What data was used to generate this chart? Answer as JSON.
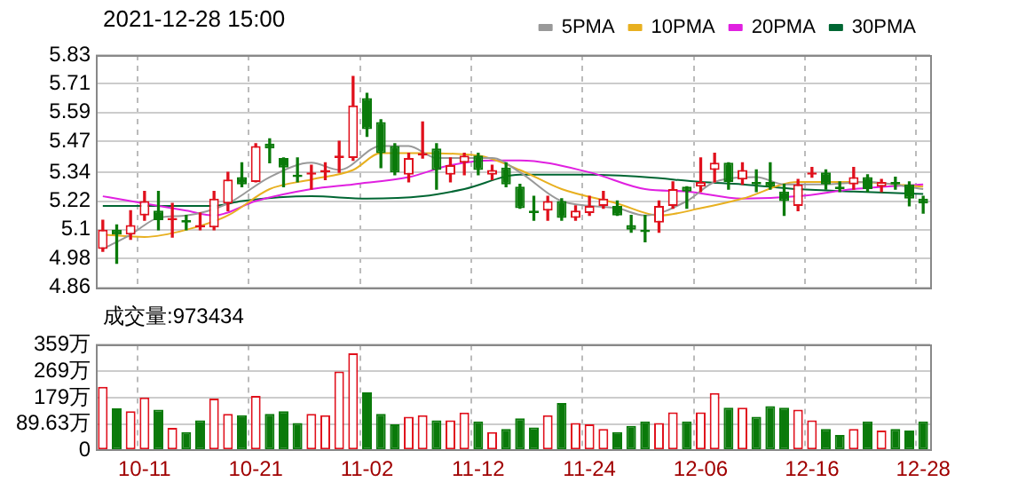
{
  "chart_data": [
    {
      "type": "candlestick",
      "title": "2021-12-28 15:00",
      "categories": [
        null,
        null,
        null,
        null,
        null,
        null,
        null,
        null,
        null,
        null,
        null,
        null,
        null,
        null,
        null,
        null,
        null,
        null,
        null,
        null,
        null,
        null,
        null,
        null,
        null,
        null,
        null,
        null,
        null,
        null,
        null,
        null,
        null,
        null,
        null,
        null,
        null,
        null,
        null,
        null,
        null,
        null,
        null,
        null,
        null,
        null,
        null,
        null,
        null,
        null,
        null,
        null,
        null,
        null,
        null,
        null,
        null,
        null,
        null,
        null
      ],
      "ohlc": [
        [
          5.02,
          5.14,
          5.01,
          5.1
        ],
        [
          5.1,
          5.12,
          4.96,
          5.08
        ],
        [
          5.08,
          5.18,
          5.06,
          5.12
        ],
        [
          5.16,
          5.26,
          5.14,
          5.22
        ],
        [
          5.18,
          5.26,
          5.1,
          5.14
        ],
        [
          5.14,
          5.21,
          5.07,
          5.15
        ],
        [
          5.14,
          5.16,
          5.1,
          5.13
        ],
        [
          5.11,
          5.17,
          5.1,
          5.12
        ],
        [
          5.11,
          5.26,
          5.1,
          5.23
        ],
        [
          5.21,
          5.34,
          5.18,
          5.31
        ],
        [
          5.32,
          5.38,
          5.28,
          5.29
        ],
        [
          5.3,
          5.46,
          5.3,
          5.45
        ],
        [
          5.46,
          5.48,
          5.38,
          5.44
        ],
        [
          5.4,
          5.4,
          5.28,
          5.36
        ],
        [
          5.33,
          5.4,
          5.3,
          5.32
        ],
        [
          5.33,
          5.37,
          5.27,
          5.34
        ],
        [
          5.34,
          5.38,
          5.31,
          5.35
        ],
        [
          5.4,
          5.47,
          5.34,
          5.41
        ],
        [
          5.4,
          5.74,
          5.39,
          5.62
        ],
        [
          5.65,
          5.67,
          5.49,
          5.52
        ],
        [
          5.55,
          5.56,
          5.36,
          5.42
        ],
        [
          5.45,
          5.46,
          5.33,
          5.34
        ],
        [
          5.33,
          5.42,
          5.3,
          5.4
        ],
        [
          5.41,
          5.55,
          5.4,
          5.42
        ],
        [
          5.44,
          5.46,
          5.27,
          5.35
        ],
        [
          5.33,
          5.4,
          5.3,
          5.37
        ],
        [
          5.38,
          5.42,
          5.33,
          5.41
        ],
        [
          5.41,
          5.42,
          5.33,
          5.35
        ],
        [
          5.33,
          5.37,
          5.31,
          5.35
        ],
        [
          5.36,
          5.38,
          5.28,
          5.29
        ],
        [
          5.28,
          5.29,
          5.19,
          5.19
        ],
        [
          5.18,
          5.24,
          5.14,
          5.17
        ],
        [
          5.18,
          5.24,
          5.14,
          5.22
        ],
        [
          5.22,
          5.23,
          5.14,
          5.15
        ],
        [
          5.15,
          5.2,
          5.14,
          5.18
        ],
        [
          5.17,
          5.24,
          5.16,
          5.2
        ],
        [
          5.2,
          5.26,
          5.19,
          5.23
        ],
        [
          5.2,
          5.22,
          5.16,
          5.16
        ],
        [
          5.12,
          5.16,
          5.09,
          5.1
        ],
        [
          5.1,
          5.16,
          5.05,
          5.09
        ],
        [
          5.13,
          5.22,
          5.09,
          5.2
        ],
        [
          5.2,
          5.3,
          5.19,
          5.27
        ],
        [
          5.28,
          5.28,
          5.19,
          5.26
        ],
        [
          5.28,
          5.4,
          5.26,
          5.3
        ],
        [
          5.35,
          5.42,
          5.3,
          5.38
        ],
        [
          5.38,
          5.38,
          5.27,
          5.3
        ],
        [
          5.31,
          5.38,
          5.29,
          5.35
        ],
        [
          5.3,
          5.35,
          5.26,
          5.29
        ],
        [
          5.3,
          5.38,
          5.27,
          5.28
        ],
        [
          5.26,
          5.29,
          5.16,
          5.22
        ],
        [
          5.2,
          5.31,
          5.18,
          5.29
        ],
        [
          5.33,
          5.36,
          5.32,
          5.34
        ],
        [
          5.34,
          5.35,
          5.27,
          5.29
        ],
        [
          5.28,
          5.3,
          5.26,
          5.27
        ],
        [
          5.29,
          5.36,
          5.27,
          5.32
        ],
        [
          5.32,
          5.33,
          5.26,
          5.27
        ],
        [
          5.28,
          5.31,
          5.26,
          5.3
        ],
        [
          5.3,
          5.32,
          5.27,
          5.29
        ],
        [
          5.29,
          5.3,
          5.2,
          5.23
        ],
        [
          5.23,
          5.24,
          5.17,
          5.21
        ]
      ],
      "colors": [
        "#e0101c",
        "#0a7a0a",
        "#e0101c",
        "#e0101c",
        "#0a7a0a",
        "#e0101c",
        "#0a7a0a",
        "#e0101c",
        "#e0101c",
        "#e0101c",
        "#0a7a0a",
        "#e0101c",
        "#0a7a0a",
        "#0a7a0a",
        "#0a7a0a",
        "#e0101c",
        "#e0101c",
        "#e0101c",
        "#e0101c",
        "#0a7a0a",
        "#0a7a0a",
        "#0a7a0a",
        "#e0101c",
        "#e0101c",
        "#0a7a0a",
        "#e0101c",
        "#e0101c",
        "#0a7a0a",
        "#e0101c",
        "#0a7a0a",
        "#0a7a0a",
        "#0a7a0a",
        "#e0101c",
        "#0a7a0a",
        "#e0101c",
        "#e0101c",
        "#e0101c",
        "#0a7a0a",
        "#0a7a0a",
        "#0a7a0a",
        "#e0101c",
        "#e0101c",
        "#0a7a0a",
        "#e0101c",
        "#e0101c",
        "#0a7a0a",
        "#e0101c",
        "#0a7a0a",
        "#0a7a0a",
        "#0a7a0a",
        "#e0101c",
        "#e0101c",
        "#0a7a0a",
        "#0a7a0a",
        "#e0101c",
        "#0a7a0a",
        "#e0101c",
        "#0a7a0a",
        "#0a7a0a",
        "#0a7a0a"
      ],
      "series": [
        {
          "name": "5PMA",
          "type": "line",
          "color": "#999999",
          "values": [
            5.02,
            null,
            5.08,
            null,
            5.15,
            null,
            5.16,
            null,
            null,
            5.21,
            null,
            null,
            5.32,
            null,
            null,
            5.38,
            null,
            5.35,
            null,
            null,
            5.45,
            null,
            5.45,
            null,
            5.4,
            null,
            null,
            null,
            5.4,
            null,
            5.34,
            null,
            null,
            5.22,
            null,
            null,
            null,
            5.19,
            null,
            5.16,
            null,
            null,
            5.22,
            null,
            5.3,
            null,
            null,
            5.32,
            null,
            5.29,
            null,
            null,
            5.29,
            null,
            null,
            5.3,
            null,
            null,
            null,
            5.27
          ]
        },
        {
          "name": "10PMA",
          "type": "line",
          "color": "#e8b020",
          "values": [
            5.08,
            null,
            null,
            5.07,
            null,
            null,
            5.1,
            null,
            null,
            5.16,
            null,
            null,
            5.27,
            null,
            null,
            5.31,
            null,
            null,
            5.35,
            null,
            5.42,
            null,
            null,
            5.42,
            null,
            null,
            null,
            5.41,
            null,
            null,
            5.35,
            null,
            null,
            5.27,
            null,
            null,
            null,
            5.21,
            null,
            null,
            5.16,
            null,
            null,
            5.19,
            null,
            null,
            5.23,
            null,
            null,
            null,
            5.3,
            null,
            null,
            null,
            5.3,
            null,
            null,
            null,
            null,
            5.28
          ]
        },
        {
          "name": "20PMA",
          "type": "line",
          "color": "#e020e0",
          "values": [
            5.24,
            null,
            null,
            5.21,
            null,
            null,
            5.18,
            null,
            5.16,
            null,
            null,
            5.22,
            null,
            null,
            null,
            5.27,
            null,
            null,
            5.29,
            null,
            null,
            null,
            5.32,
            null,
            null,
            5.37,
            null,
            null,
            5.39,
            null,
            5.39,
            null,
            null,
            null,
            null,
            5.34,
            null,
            null,
            null,
            5.27,
            null,
            null,
            5.26,
            null,
            null,
            null,
            5.23,
            null,
            null,
            null,
            5.24,
            null,
            null,
            null,
            5.27,
            null,
            null,
            null,
            null,
            5.29
          ]
        },
        {
          "name": "30PMA",
          "type": "line",
          "color": "#006633",
          "values": [
            5.2,
            null,
            null,
            null,
            null,
            null,
            null,
            null,
            5.2,
            null,
            5.22,
            null,
            null,
            null,
            null,
            5.24,
            null,
            null,
            null,
            5.23,
            null,
            null,
            null,
            5.24,
            null,
            null,
            5.27,
            null,
            null,
            null,
            5.33,
            null,
            null,
            null,
            null,
            5.33,
            null,
            null,
            null,
            5.32,
            null,
            null,
            null,
            5.3,
            null,
            null,
            5.29,
            null,
            null,
            null,
            5.27,
            null,
            null,
            null,
            5.26,
            null,
            null,
            null,
            null,
            5.25
          ]
        }
      ],
      "ylim": [
        4.86,
        5.83
      ],
      "yticks": [
        4.86,
        4.98,
        5.1,
        5.22,
        5.34,
        5.47,
        5.59,
        5.71,
        5.83
      ],
      "grid": true,
      "legend": "top right",
      "tick_labels": "y"
    },
    {
      "type": "bar",
      "annotations": [
        "成交量:973434"
      ],
      "categories": [
        null,
        null,
        null,
        "10-11",
        null,
        null,
        null,
        null,
        null,
        null,
        null,
        "10-21",
        null,
        null,
        null,
        null,
        null,
        null,
        null,
        "11-02",
        null,
        null,
        null,
        null,
        null,
        null,
        null,
        "11-12",
        null,
        null,
        null,
        null,
        null,
        null,
        null,
        "11-24",
        null,
        null,
        null,
        null,
        null,
        null,
        null,
        "12-06",
        null,
        null,
        null,
        null,
        null,
        null,
        null,
        "12-16",
        null,
        null,
        null,
        null,
        null,
        null,
        null,
        "12-28"
      ],
      "values": [
        216,
        143,
        133,
        180,
        138,
        76,
        62,
        102,
        176,
        124,
        119,
        185,
        124,
        133,
        93,
        124,
        119,
        268,
        330,
        197,
        124,
        88,
        114,
        119,
        102,
        102,
        128,
        98,
        62,
        72,
        109,
        78,
        119,
        161,
        93,
        88,
        72,
        62,
        83,
        98,
        93,
        129,
        98,
        129,
        195,
        145,
        145,
        114,
        150,
        145,
        138,
        102,
        72,
        52,
        72,
        98,
        67,
        72,
        67,
        98
      ],
      "colors": [
        "#e0101c",
        "#0a7a0a",
        "#e0101c",
        "#e0101c",
        "#0a7a0a",
        "#e0101c",
        "#0a7a0a",
        "#0a7a0a",
        "#e0101c",
        "#e0101c",
        "#0a7a0a",
        "#e0101c",
        "#0a7a0a",
        "#0a7a0a",
        "#0a7a0a",
        "#e0101c",
        "#e0101c",
        "#e0101c",
        "#e0101c",
        "#0a7a0a",
        "#0a7a0a",
        "#0a7a0a",
        "#e0101c",
        "#e0101c",
        "#0a7a0a",
        "#e0101c",
        "#e0101c",
        "#0a7a0a",
        "#e0101c",
        "#0a7a0a",
        "#0a7a0a",
        "#0a7a0a",
        "#e0101c",
        "#0a7a0a",
        "#e0101c",
        "#e0101c",
        "#e0101c",
        "#0a7a0a",
        "#0a7a0a",
        "#0a7a0a",
        "#e0101c",
        "#e0101c",
        "#0a7a0a",
        "#e0101c",
        "#e0101c",
        "#0a7a0a",
        "#e0101c",
        "#0a7a0a",
        "#0a7a0a",
        "#0a7a0a",
        "#e0101c",
        "#e0101c",
        "#0a7a0a",
        "#0a7a0a",
        "#e0101c",
        "#0a7a0a",
        "#e0101c",
        "#0a7a0a",
        "#0a7a0a",
        "#0a7a0a"
      ],
      "ylim": [
        0,
        359
      ],
      "yticks": [
        0,
        {
          "value": 89.63,
          "label": "89.63万"
        },
        {
          "value": 179,
          "label": "179万"
        },
        {
          "value": 269,
          "label": "269万"
        },
        {
          "value": 359,
          "label": "359万"
        }
      ],
      "grid": true
    }
  ]
}
